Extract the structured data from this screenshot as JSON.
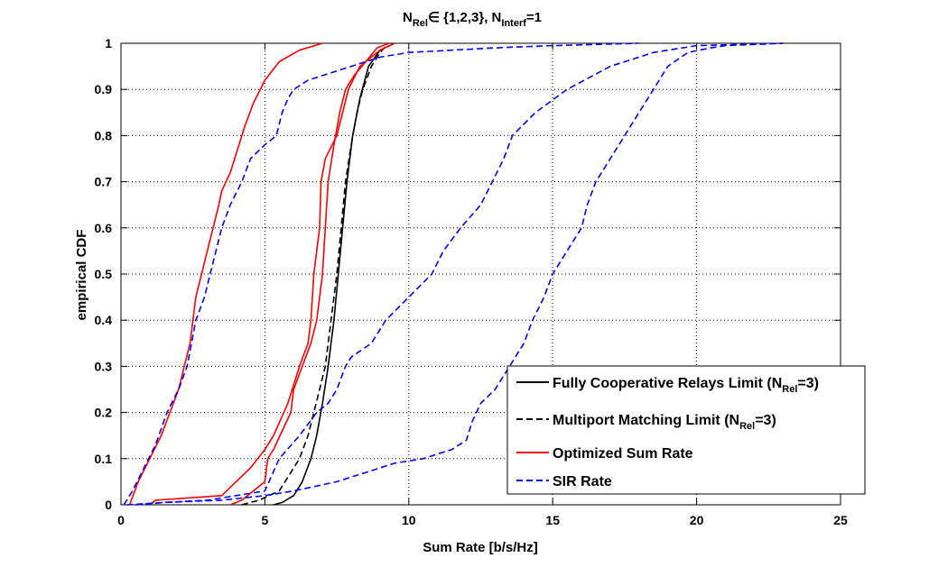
{
  "chart_data": {
    "type": "line",
    "title": {
      "main": "N",
      "sub1": "Rel",
      "mid": "∈ {1,2,3}, N",
      "sub2": "Interf",
      "end": "=1"
    },
    "xlabel": "Sum Rate [b/s/Hz]",
    "ylabel": "empirical CDF",
    "xlim": [
      0,
      25
    ],
    "ylim": [
      0,
      1
    ],
    "x_ticks": [
      "0",
      "5",
      "10",
      "15",
      "20",
      "25"
    ],
    "y_ticks": [
      "0",
      "0.1",
      "0.2",
      "0.3",
      "0.4",
      "0.5",
      "0.6",
      "0.7",
      "0.8",
      "0.9",
      "1"
    ],
    "grid": true,
    "legend": {
      "placement": "bottom-right",
      "entries": [
        {
          "pre": "Fully Cooperative Relays Limit (N",
          "sub": "Rel",
          "post": "=3)",
          "color": "#000000",
          "dash": "solid"
        },
        {
          "pre": "Multiport Matching Limit (N",
          "sub": "Rel",
          "post": "=3)",
          "color": "#000000",
          "dash": "dashed"
        },
        {
          "pre": "Optimized Sum Rate",
          "sub": "",
          "post": "",
          "color": "#ff0000",
          "dash": "solid"
        },
        {
          "pre": "SIR Rate",
          "sub": "",
          "post": "",
          "color": "#0000ff",
          "dash": "dashed"
        }
      ]
    },
    "series": [
      {
        "color": "#000000",
        "dash": "solid",
        "points": [
          [
            5.3,
            0
          ],
          [
            5.6,
            0.005
          ],
          [
            6.0,
            0.02
          ],
          [
            6.3,
            0.05
          ],
          [
            6.6,
            0.1
          ],
          [
            6.8,
            0.15
          ],
          [
            7.0,
            0.22
          ],
          [
            7.2,
            0.3
          ],
          [
            7.4,
            0.4
          ],
          [
            7.55,
            0.5
          ],
          [
            7.7,
            0.6
          ],
          [
            7.85,
            0.7
          ],
          [
            8.05,
            0.8
          ],
          [
            8.3,
            0.88
          ],
          [
            8.6,
            0.95
          ],
          [
            9.0,
            0.985
          ],
          [
            9.5,
            1.0
          ]
        ]
      },
      {
        "color": "#000000",
        "dash": "dashed",
        "points": [
          [
            4.2,
            0
          ],
          [
            4.8,
            0.01
          ],
          [
            5.5,
            0.03
          ],
          [
            5.8,
            0.06
          ],
          [
            6.2,
            0.1
          ],
          [
            6.5,
            0.15
          ],
          [
            6.7,
            0.2
          ],
          [
            6.9,
            0.25
          ],
          [
            7.1,
            0.3
          ],
          [
            7.3,
            0.4
          ],
          [
            7.5,
            0.5
          ],
          [
            7.65,
            0.6
          ],
          [
            7.8,
            0.7
          ],
          [
            8.0,
            0.78
          ],
          [
            8.2,
            0.85
          ],
          [
            8.4,
            0.9
          ],
          [
            8.7,
            0.95
          ],
          [
            9.0,
            0.98
          ],
          [
            9.3,
            1.0
          ]
        ]
      },
      {
        "color": "#ff0000",
        "dash": "solid",
        "points": [
          [
            0.3,
            0
          ],
          [
            0.6,
            0.05
          ],
          [
            1.0,
            0.1
          ],
          [
            1.4,
            0.15
          ],
          [
            1.7,
            0.2
          ],
          [
            2.0,
            0.25
          ],
          [
            2.2,
            0.3
          ],
          [
            2.4,
            0.35
          ],
          [
            2.5,
            0.4
          ],
          [
            2.6,
            0.45
          ],
          [
            2.8,
            0.5
          ],
          [
            3.0,
            0.55
          ],
          [
            3.2,
            0.6
          ],
          [
            3.4,
            0.65
          ],
          [
            3.5,
            0.68
          ],
          [
            3.8,
            0.72
          ],
          [
            4.1,
            0.78
          ],
          [
            4.3,
            0.82
          ],
          [
            4.6,
            0.87
          ],
          [
            5.0,
            0.92
          ],
          [
            5.5,
            0.96
          ],
          [
            6.2,
            0.985
          ],
          [
            7.0,
            1.0
          ]
        ]
      },
      {
        "color": "#ff0000",
        "dash": "solid",
        "points": [
          [
            1.0,
            0
          ],
          [
            1.2,
            0.01
          ],
          [
            3.5,
            0.02
          ],
          [
            4.0,
            0.05
          ],
          [
            4.5,
            0.08
          ],
          [
            5.0,
            0.12
          ],
          [
            5.3,
            0.15
          ],
          [
            5.8,
            0.22
          ],
          [
            6.2,
            0.3
          ],
          [
            6.5,
            0.35
          ],
          [
            6.6,
            0.4
          ],
          [
            6.7,
            0.5
          ],
          [
            6.8,
            0.55
          ],
          [
            6.9,
            0.6
          ],
          [
            6.95,
            0.7
          ],
          [
            7.1,
            0.75
          ],
          [
            7.5,
            0.8
          ],
          [
            7.7,
            0.85
          ],
          [
            7.9,
            0.9
          ],
          [
            8.3,
            0.95
          ],
          [
            9.0,
            0.985
          ],
          [
            9.5,
            1.0
          ]
        ]
      },
      {
        "color": "#ff0000",
        "dash": "solid",
        "points": [
          [
            3.8,
            0
          ],
          [
            4.2,
            0.01
          ],
          [
            4.6,
            0.03
          ],
          [
            5.0,
            0.05
          ],
          [
            5.1,
            0.1
          ],
          [
            5.3,
            0.12
          ],
          [
            5.9,
            0.2
          ],
          [
            6.0,
            0.25
          ],
          [
            6.3,
            0.3
          ],
          [
            6.6,
            0.35
          ],
          [
            6.8,
            0.4
          ],
          [
            7.0,
            0.5
          ],
          [
            7.1,
            0.6
          ],
          [
            7.2,
            0.7
          ],
          [
            7.4,
            0.78
          ],
          [
            7.6,
            0.85
          ],
          [
            7.8,
            0.9
          ],
          [
            8.1,
            0.93
          ],
          [
            8.5,
            0.96
          ],
          [
            8.9,
            0.99
          ],
          [
            9.3,
            1.0
          ]
        ]
      },
      {
        "color": "#0000ff",
        "dash": "dashed",
        "points": [
          [
            0.1,
            0
          ],
          [
            0.4,
            0.03
          ],
          [
            0.8,
            0.08
          ],
          [
            1.2,
            0.13
          ],
          [
            1.6,
            0.2
          ],
          [
            2.0,
            0.25
          ],
          [
            2.3,
            0.3
          ],
          [
            2.6,
            0.4
          ],
          [
            2.9,
            0.45
          ],
          [
            3.1,
            0.5
          ],
          [
            3.3,
            0.55
          ],
          [
            3.5,
            0.6
          ],
          [
            3.8,
            0.65
          ],
          [
            4.2,
            0.7
          ],
          [
            4.5,
            0.75
          ],
          [
            5.0,
            0.78
          ],
          [
            5.4,
            0.8
          ],
          [
            5.6,
            0.85
          ],
          [
            5.8,
            0.88
          ],
          [
            6.0,
            0.9
          ],
          [
            6.5,
            0.92
          ],
          [
            7.5,
            0.94
          ],
          [
            8.0,
            0.95
          ],
          [
            9.0,
            0.97
          ],
          [
            10.0,
            0.98
          ],
          [
            13.0,
            0.99
          ],
          [
            15.0,
            0.995
          ],
          [
            18.0,
            1.0
          ]
        ]
      },
      {
        "color": "#0000ff",
        "dash": "dashed",
        "points": [
          [
            0.2,
            0
          ],
          [
            1.5,
            0.005
          ],
          [
            3.5,
            0.01
          ],
          [
            5.0,
            0.02
          ],
          [
            6.0,
            0.03
          ],
          [
            7.5,
            0.05
          ],
          [
            8.5,
            0.07
          ],
          [
            9.5,
            0.09
          ],
          [
            10.5,
            0.1
          ],
          [
            11.5,
            0.12
          ],
          [
            12.0,
            0.14
          ],
          [
            12.2,
            0.18
          ],
          [
            12.5,
            0.22
          ],
          [
            13.0,
            0.25
          ],
          [
            13.5,
            0.3
          ],
          [
            14.0,
            0.35
          ],
          [
            14.3,
            0.4
          ],
          [
            14.7,
            0.45
          ],
          [
            15.0,
            0.5
          ],
          [
            15.5,
            0.55
          ],
          [
            16.0,
            0.6
          ],
          [
            16.2,
            0.65
          ],
          [
            16.5,
            0.7
          ],
          [
            17.0,
            0.75
          ],
          [
            17.5,
            0.8
          ],
          [
            18.0,
            0.85
          ],
          [
            18.5,
            0.9
          ],
          [
            19.0,
            0.95
          ],
          [
            19.7,
            0.98
          ],
          [
            20.5,
            0.99
          ],
          [
            21.0,
            0.995
          ],
          [
            23.0,
            1.0
          ]
        ]
      },
      {
        "color": "#0000ff",
        "dash": "dashed",
        "points": [
          [
            0.5,
            0
          ],
          [
            1.5,
            0.005
          ],
          [
            3.0,
            0.01
          ],
          [
            4.0,
            0.02
          ],
          [
            5.0,
            0.03
          ],
          [
            5.5,
            0.1
          ],
          [
            6.2,
            0.15
          ],
          [
            6.8,
            0.2
          ],
          [
            7.2,
            0.22
          ],
          [
            7.5,
            0.25
          ],
          [
            7.8,
            0.3
          ],
          [
            8.0,
            0.32
          ],
          [
            8.7,
            0.35
          ],
          [
            9.2,
            0.4
          ],
          [
            10.0,
            0.45
          ],
          [
            10.8,
            0.5
          ],
          [
            11.2,
            0.55
          ],
          [
            11.8,
            0.6
          ],
          [
            12.5,
            0.65
          ],
          [
            12.9,
            0.7
          ],
          [
            13.3,
            0.75
          ],
          [
            13.6,
            0.8
          ],
          [
            14.4,
            0.85
          ],
          [
            15.5,
            0.9
          ],
          [
            17.0,
            0.95
          ],
          [
            18.5,
            0.98
          ],
          [
            20.0,
            0.995
          ],
          [
            23.0,
            1.0
          ]
        ]
      }
    ]
  }
}
